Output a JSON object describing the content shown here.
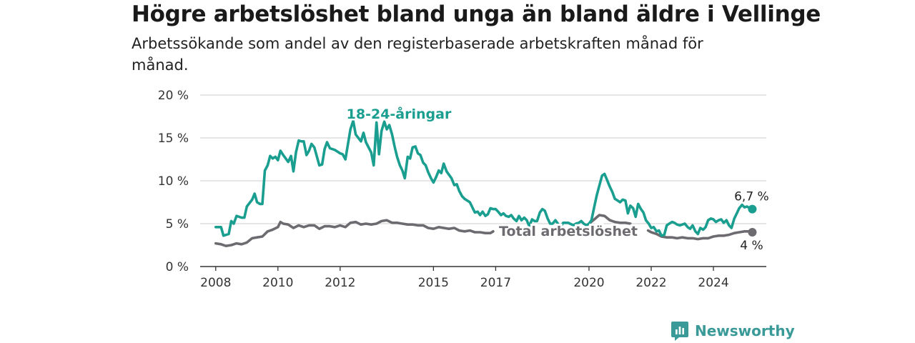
{
  "header": {
    "title": "Högre arbetslöshet bland unga än bland äldre i Vellinge",
    "subtitle": "Arbetssökande som andel av den registerbaserade arbetskraften månad för månad."
  },
  "brand": {
    "name": "Newsworthy",
    "icon": "newsworthy-logo-icon",
    "color": "#3a9a97"
  },
  "chart_data": {
    "type": "line",
    "x_unit": "year",
    "xlim": [
      2007.5,
      2025.7
    ],
    "ylim": [
      0,
      20
    ],
    "y_ticks": [
      0,
      5,
      10,
      15,
      20
    ],
    "y_tick_labels": [
      "0 %",
      "5 %",
      "10 %",
      "15 %",
      "20 %"
    ],
    "x_ticks": [
      2008,
      2010,
      2012,
      2015,
      2017,
      2020,
      2022,
      2024
    ],
    "x_tick_labels": [
      "2008",
      "2010",
      "2012",
      "2015",
      "2017",
      "2020",
      "2022",
      "2024"
    ],
    "grid": true,
    "series": [
      {
        "name": "18-24-åringar",
        "color": "#1a9e8f",
        "end_label": "6,7 %",
        "points": [
          [
            2008.0,
            4.6
          ],
          [
            2008.17,
            4.6
          ],
          [
            2008.25,
            3.6
          ],
          [
            2008.42,
            3.8
          ],
          [
            2008.5,
            5.3
          ],
          [
            2008.58,
            5.0
          ],
          [
            2008.67,
            5.9
          ],
          [
            2008.83,
            5.7
          ],
          [
            2008.92,
            5.7
          ],
          [
            2009.0,
            7.0
          ],
          [
            2009.17,
            7.8
          ],
          [
            2009.25,
            8.5
          ],
          [
            2009.33,
            7.5
          ],
          [
            2009.42,
            7.3
          ],
          [
            2009.5,
            7.3
          ],
          [
            2009.58,
            11.2
          ],
          [
            2009.67,
            11.8
          ],
          [
            2009.75,
            12.9
          ],
          [
            2009.83,
            12.6
          ],
          [
            2009.92,
            12.8
          ],
          [
            2010.0,
            12.4
          ],
          [
            2010.08,
            13.5
          ],
          [
            2010.17,
            13.0
          ],
          [
            2010.25,
            12.6
          ],
          [
            2010.33,
            12.2
          ],
          [
            2010.42,
            12.9
          ],
          [
            2010.5,
            11.1
          ],
          [
            2010.58,
            13.3
          ],
          [
            2010.67,
            14.7
          ],
          [
            2010.75,
            14.6
          ],
          [
            2010.83,
            14.6
          ],
          [
            2010.92,
            13.0
          ],
          [
            2011.0,
            13.5
          ],
          [
            2011.08,
            14.3
          ],
          [
            2011.17,
            13.9
          ],
          [
            2011.33,
            11.8
          ],
          [
            2011.42,
            11.9
          ],
          [
            2011.5,
            13.7
          ],
          [
            2011.58,
            14.5
          ],
          [
            2011.67,
            13.8
          ],
          [
            2011.83,
            13.6
          ],
          [
            2012.0,
            13.2
          ],
          [
            2012.08,
            13.1
          ],
          [
            2012.17,
            12.5
          ],
          [
            2012.33,
            16.0
          ],
          [
            2012.42,
            17.0
          ],
          [
            2012.5,
            15.4
          ],
          [
            2012.67,
            14.6
          ],
          [
            2012.75,
            15.6
          ],
          [
            2012.83,
            14.5
          ],
          [
            2013.0,
            13.3
          ],
          [
            2013.08,
            11.8
          ],
          [
            2013.17,
            16.8
          ],
          [
            2013.25,
            13.1
          ],
          [
            2013.33,
            15.8
          ],
          [
            2013.42,
            16.9
          ],
          [
            2013.5,
            16.0
          ],
          [
            2013.58,
            16.5
          ],
          [
            2013.67,
            15.4
          ],
          [
            2013.75,
            14.0
          ],
          [
            2013.83,
            12.8
          ],
          [
            2013.92,
            11.8
          ],
          [
            2014.0,
            11.2
          ],
          [
            2014.08,
            10.3
          ],
          [
            2014.17,
            12.8
          ],
          [
            2014.25,
            12.6
          ],
          [
            2014.33,
            13.9
          ],
          [
            2014.42,
            14.0
          ],
          [
            2014.5,
            13.2
          ],
          [
            2014.58,
            13.0
          ],
          [
            2014.67,
            12.1
          ],
          [
            2014.75,
            11.8
          ],
          [
            2014.83,
            11.0
          ],
          [
            2014.92,
            10.3
          ],
          [
            2015.0,
            9.8
          ],
          [
            2015.08,
            10.4
          ],
          [
            2015.17,
            11.2
          ],
          [
            2015.25,
            10.9
          ],
          [
            2015.33,
            12.0
          ],
          [
            2015.42,
            11.1
          ],
          [
            2015.5,
            10.7
          ],
          [
            2015.58,
            10.3
          ],
          [
            2015.67,
            9.5
          ],
          [
            2015.75,
            9.6
          ],
          [
            2015.83,
            8.8
          ],
          [
            2015.92,
            8.2
          ],
          [
            2016.0,
            7.9
          ],
          [
            2016.17,
            7.5
          ],
          [
            2016.33,
            6.3
          ],
          [
            2016.42,
            6.4
          ],
          [
            2016.5,
            6.0
          ],
          [
            2016.58,
            6.4
          ],
          [
            2016.67,
            5.9
          ],
          [
            2016.75,
            6.1
          ],
          [
            2016.83,
            6.8
          ],
          [
            2016.92,
            6.7
          ],
          [
            2017.0,
            6.7
          ],
          [
            2017.08,
            6.4
          ],
          [
            2017.17,
            6.0
          ],
          [
            2017.25,
            6.2
          ],
          [
            2017.33,
            5.9
          ],
          [
            2017.42,
            5.8
          ],
          [
            2017.5,
            6.0
          ],
          [
            2017.58,
            5.6
          ],
          [
            2017.67,
            5.3
          ],
          [
            2017.75,
            5.9
          ],
          [
            2017.83,
            5.4
          ],
          [
            2017.92,
            5.7
          ],
          [
            2018.0,
            5.4
          ],
          [
            2018.08,
            4.7
          ],
          [
            2018.17,
            5.5
          ],
          [
            2018.25,
            5.3
          ],
          [
            2018.33,
            5.3
          ],
          [
            2018.42,
            6.3
          ],
          [
            2018.5,
            6.7
          ],
          [
            2018.58,
            6.5
          ],
          [
            2018.67,
            5.6
          ],
          [
            2018.75,
            5.0
          ],
          [
            2018.83,
            5.0
          ],
          [
            2018.92,
            5.4
          ],
          [
            2019.0,
            5.0
          ],
          [
            2019.08,
            4.6
          ],
          [
            2019.17,
            5.1
          ],
          [
            2019.33,
            5.1
          ],
          [
            2019.5,
            4.8
          ],
          [
            2019.58,
            5.0
          ],
          [
            2019.67,
            5.1
          ],
          [
            2019.75,
            5.3
          ],
          [
            2019.83,
            5.0
          ],
          [
            2019.92,
            4.8
          ],
          [
            2020.0,
            5.0
          ],
          [
            2020.08,
            5.4
          ],
          [
            2020.17,
            7.0
          ],
          [
            2020.25,
            8.3
          ],
          [
            2020.33,
            9.4
          ],
          [
            2020.42,
            10.6
          ],
          [
            2020.5,
            10.8
          ],
          [
            2020.58,
            10.1
          ],
          [
            2020.67,
            9.3
          ],
          [
            2020.75,
            8.7
          ],
          [
            2020.83,
            7.9
          ],
          [
            2020.92,
            7.7
          ],
          [
            2021.0,
            7.5
          ],
          [
            2021.08,
            7.8
          ],
          [
            2021.17,
            7.7
          ],
          [
            2021.25,
            6.2
          ],
          [
            2021.33,
            7.1
          ],
          [
            2021.42,
            6.8
          ],
          [
            2021.5,
            5.8
          ],
          [
            2021.58,
            7.3
          ],
          [
            2021.67,
            6.7
          ],
          [
            2021.75,
            6.3
          ],
          [
            2021.83,
            5.4
          ],
          [
            2021.92,
            5.0
          ],
          [
            2022.0,
            4.5
          ],
          [
            2022.08,
            4.6
          ],
          [
            2022.17,
            4.1
          ],
          [
            2022.25,
            4.2
          ],
          [
            2022.33,
            3.6
          ],
          [
            2022.42,
            3.7
          ],
          [
            2022.5,
            4.8
          ],
          [
            2022.58,
            5.0
          ],
          [
            2022.67,
            5.2
          ],
          [
            2022.75,
            5.1
          ],
          [
            2022.83,
            4.9
          ],
          [
            2022.92,
            4.8
          ],
          [
            2023.0,
            4.9
          ],
          [
            2023.08,
            5.0
          ],
          [
            2023.17,
            4.6
          ],
          [
            2023.25,
            4.4
          ],
          [
            2023.33,
            4.8
          ],
          [
            2023.42,
            4.1
          ],
          [
            2023.5,
            3.8
          ],
          [
            2023.58,
            4.5
          ],
          [
            2023.67,
            4.3
          ],
          [
            2023.75,
            4.6
          ],
          [
            2023.83,
            5.4
          ],
          [
            2023.92,
            5.6
          ],
          [
            2024.0,
            5.5
          ],
          [
            2024.08,
            5.2
          ],
          [
            2024.17,
            5.4
          ],
          [
            2024.25,
            5.5
          ],
          [
            2024.33,
            5.1
          ],
          [
            2024.42,
            5.4
          ],
          [
            2024.5,
            4.8
          ],
          [
            2024.58,
            4.5
          ],
          [
            2024.67,
            5.6
          ],
          [
            2024.75,
            6.2
          ],
          [
            2024.83,
            6.8
          ],
          [
            2024.92,
            7.2
          ],
          [
            2025.0,
            6.9
          ],
          [
            2025.08,
            7.0
          ],
          [
            2025.17,
            6.8
          ],
          [
            2025.25,
            6.7
          ]
        ]
      },
      {
        "name": "Total arbetslöshet",
        "color": "#6d6b70",
        "end_label": "4 %",
        "points": [
          [
            2008.0,
            2.7
          ],
          [
            2008.17,
            2.6
          ],
          [
            2008.33,
            2.4
          ],
          [
            2008.5,
            2.5
          ],
          [
            2008.67,
            2.7
          ],
          [
            2008.83,
            2.6
          ],
          [
            2009.0,
            2.8
          ],
          [
            2009.17,
            3.3
          ],
          [
            2009.33,
            3.4
          ],
          [
            2009.5,
            3.5
          ],
          [
            2009.67,
            4.1
          ],
          [
            2009.83,
            4.3
          ],
          [
            2010.0,
            4.6
          ],
          [
            2010.08,
            5.2
          ],
          [
            2010.17,
            5.0
          ],
          [
            2010.33,
            4.9
          ],
          [
            2010.5,
            4.5
          ],
          [
            2010.67,
            4.8
          ],
          [
            2010.83,
            4.6
          ],
          [
            2011.0,
            4.8
          ],
          [
            2011.17,
            4.8
          ],
          [
            2011.33,
            4.4
          ],
          [
            2011.5,
            4.7
          ],
          [
            2011.67,
            4.7
          ],
          [
            2011.83,
            4.6
          ],
          [
            2012.0,
            4.8
          ],
          [
            2012.17,
            4.6
          ],
          [
            2012.33,
            5.1
          ],
          [
            2012.5,
            5.2
          ],
          [
            2012.67,
            4.9
          ],
          [
            2012.83,
            5.0
          ],
          [
            2013.0,
            4.9
          ],
          [
            2013.17,
            5.0
          ],
          [
            2013.33,
            5.3
          ],
          [
            2013.5,
            5.4
          ],
          [
            2013.67,
            5.1
          ],
          [
            2013.83,
            5.1
          ],
          [
            2014.0,
            5.0
          ],
          [
            2014.17,
            4.9
          ],
          [
            2014.33,
            4.9
          ],
          [
            2014.5,
            4.8
          ],
          [
            2014.67,
            4.8
          ],
          [
            2014.83,
            4.5
          ],
          [
            2015.0,
            4.4
          ],
          [
            2015.17,
            4.6
          ],
          [
            2015.33,
            4.5
          ],
          [
            2015.5,
            4.4
          ],
          [
            2015.67,
            4.5
          ],
          [
            2015.83,
            4.2
          ],
          [
            2016.0,
            4.1
          ],
          [
            2016.17,
            4.2
          ],
          [
            2016.33,
            4.0
          ],
          [
            2016.5,
            4.0
          ],
          [
            2016.67,
            3.9
          ],
          [
            2016.83,
            3.9
          ],
          [
            2016.92,
            4.1
          ]
        ],
        "points_2": [
          [
            2021.9,
            4.2
          ],
          [
            2022.0,
            4.0
          ],
          [
            2022.17,
            3.8
          ],
          [
            2022.33,
            3.5
          ],
          [
            2022.5,
            3.4
          ],
          [
            2022.67,
            3.4
          ],
          [
            2022.83,
            3.3
          ],
          [
            2023.0,
            3.4
          ],
          [
            2023.17,
            3.3
          ],
          [
            2023.33,
            3.3
          ],
          [
            2023.5,
            3.2
          ],
          [
            2023.67,
            3.3
          ],
          [
            2023.83,
            3.3
          ],
          [
            2024.0,
            3.5
          ],
          [
            2024.17,
            3.6
          ],
          [
            2024.33,
            3.6
          ],
          [
            2024.5,
            3.7
          ],
          [
            2024.67,
            3.9
          ],
          [
            2024.83,
            4.0
          ],
          [
            2025.0,
            4.1
          ],
          [
            2025.17,
            4.1
          ],
          [
            2025.25,
            4.0
          ]
        ],
        "points_mid": [
          [
            2020.0,
            5.0
          ],
          [
            2020.17,
            5.5
          ],
          [
            2020.33,
            6.0
          ],
          [
            2020.5,
            5.9
          ],
          [
            2020.67,
            5.4
          ],
          [
            2020.83,
            5.2
          ],
          [
            2021.0,
            5.1
          ],
          [
            2021.17,
            5.1
          ],
          [
            2021.33,
            5.0
          ]
        ]
      }
    ]
  }
}
